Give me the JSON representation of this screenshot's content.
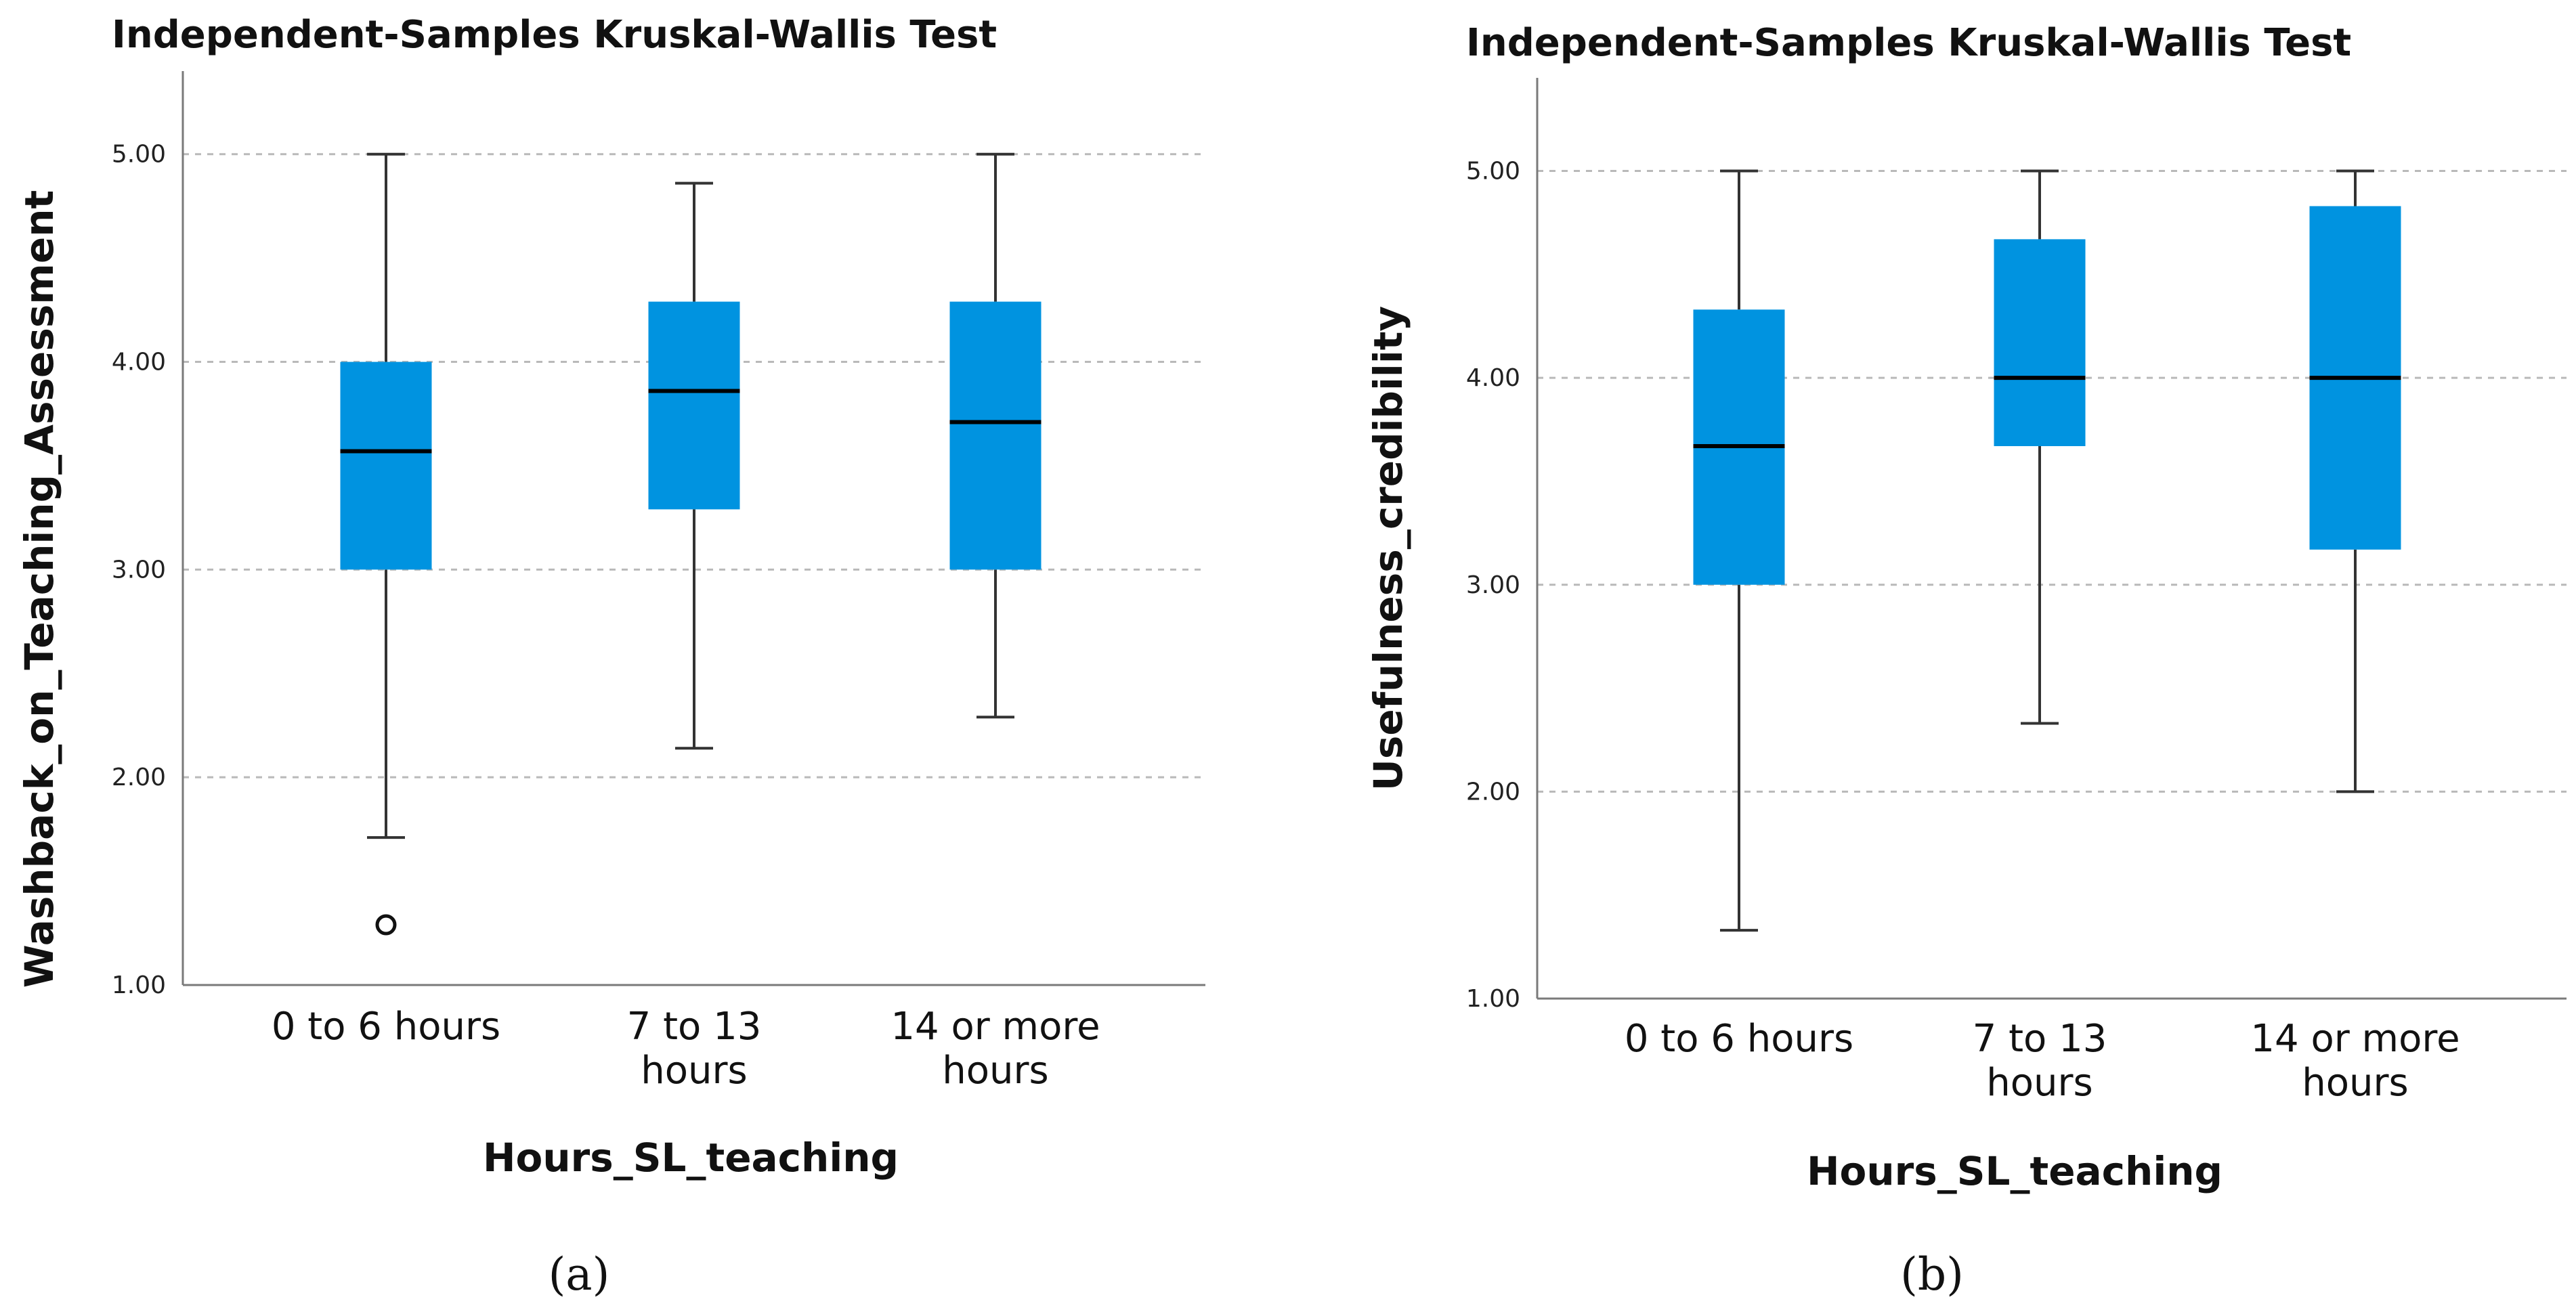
{
  "chart_data": [
    {
      "type": "box",
      "panel_label": "(a)",
      "title": "Independent-Samples Kruskal-Wallis Test",
      "xlabel": "Hours_SL_teaching",
      "ylabel": "Washback_on_Teaching_Assessment",
      "ylim": [
        1.0,
        5.4
      ],
      "yticks": [
        "1.00",
        "2.00",
        "3.00",
        "4.00",
        "5.00"
      ],
      "categories": [
        {
          "lines": [
            "0 to 6 hours"
          ]
        },
        {
          "lines": [
            "7 to 13",
            "hours"
          ]
        },
        {
          "lines": [
            "14 or more",
            "hours"
          ]
        }
      ],
      "boxes": [
        {
          "min": 1.71,
          "q1": 3.0,
          "median": 3.57,
          "q3": 4.0,
          "max": 5.0,
          "outliers": [
            1.29
          ]
        },
        {
          "min": 2.14,
          "q1": 3.29,
          "median": 3.86,
          "q3": 4.29,
          "max": 4.86,
          "outliers": []
        },
        {
          "min": 2.29,
          "q1": 3.0,
          "median": 3.71,
          "q3": 4.29,
          "max": 5.0,
          "outliers": []
        }
      ]
    },
    {
      "type": "box",
      "panel_label": "(b)",
      "title": "Independent-Samples Kruskal-Wallis Test",
      "xlabel": "Hours_SL_teaching",
      "ylabel": "Usefulness_credibility",
      "ylim": [
        1.0,
        5.45
      ],
      "yticks": [
        "1.00",
        "2.00",
        "3.00",
        "4.00",
        "5.00"
      ],
      "categories": [
        {
          "lines": [
            "0 to 6 hours"
          ]
        },
        {
          "lines": [
            "7 to 13",
            "hours"
          ]
        },
        {
          "lines": [
            "14 or more",
            "hours"
          ]
        }
      ],
      "boxes": [
        {
          "min": 1.33,
          "q1": 3.0,
          "median": 3.67,
          "q3": 4.33,
          "max": 5.0,
          "outliers": []
        },
        {
          "min": 2.33,
          "q1": 3.67,
          "median": 4.0,
          "q3": 4.67,
          "max": 5.0,
          "outliers": []
        },
        {
          "min": 2.0,
          "q1": 3.17,
          "median": 4.0,
          "q3": 4.83,
          "max": 5.0,
          "outliers": []
        }
      ]
    }
  ]
}
